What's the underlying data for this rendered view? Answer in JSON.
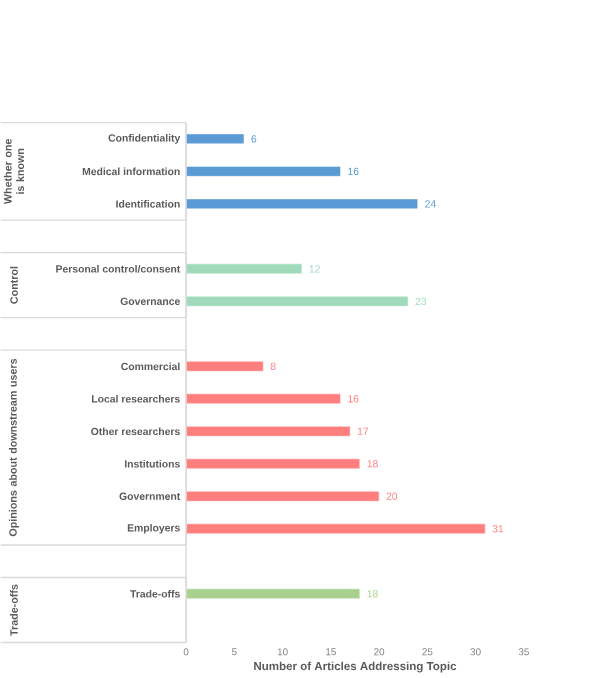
{
  "chart_data": {
    "type": "bar",
    "orientation": "horizontal",
    "xlabel": "Number of Articles Addressing Topic",
    "categories": [
      "Confidentiality",
      "Medical information",
      "Identification",
      null,
      "Personal control/consent",
      "Governance",
      null,
      "Commercial",
      "Local researchers",
      "Other researchers",
      "Institutions",
      "Government",
      "Employers",
      null,
      "Trade-offs",
      null
    ],
    "values": [
      6,
      16,
      24,
      null,
      12,
      23,
      null,
      8,
      16,
      17,
      18,
      20,
      31,
      null,
      18,
      null
    ],
    "colors": [
      "#5b9bd5",
      "#5b9bd5",
      "#5b9bd5",
      null,
      "#9fdbbb",
      "#9fdbbb",
      null,
      "#ff7f7f",
      "#ff7f7f",
      "#ff7f7f",
      "#ff7f7f",
      "#ff7f7f",
      "#ff7f7f",
      null,
      "#a9d18e",
      null
    ],
    "annotations": [
      "Whether one is known",
      "Control",
      "Opinions about downstream users",
      "Trade-offs"
    ],
    "xlim": [
      0,
      35
    ],
    "xticks": [
      0,
      5,
      10,
      15,
      20,
      25,
      30,
      35
    ],
    "data_labels": true,
    "grid": false
  }
}
